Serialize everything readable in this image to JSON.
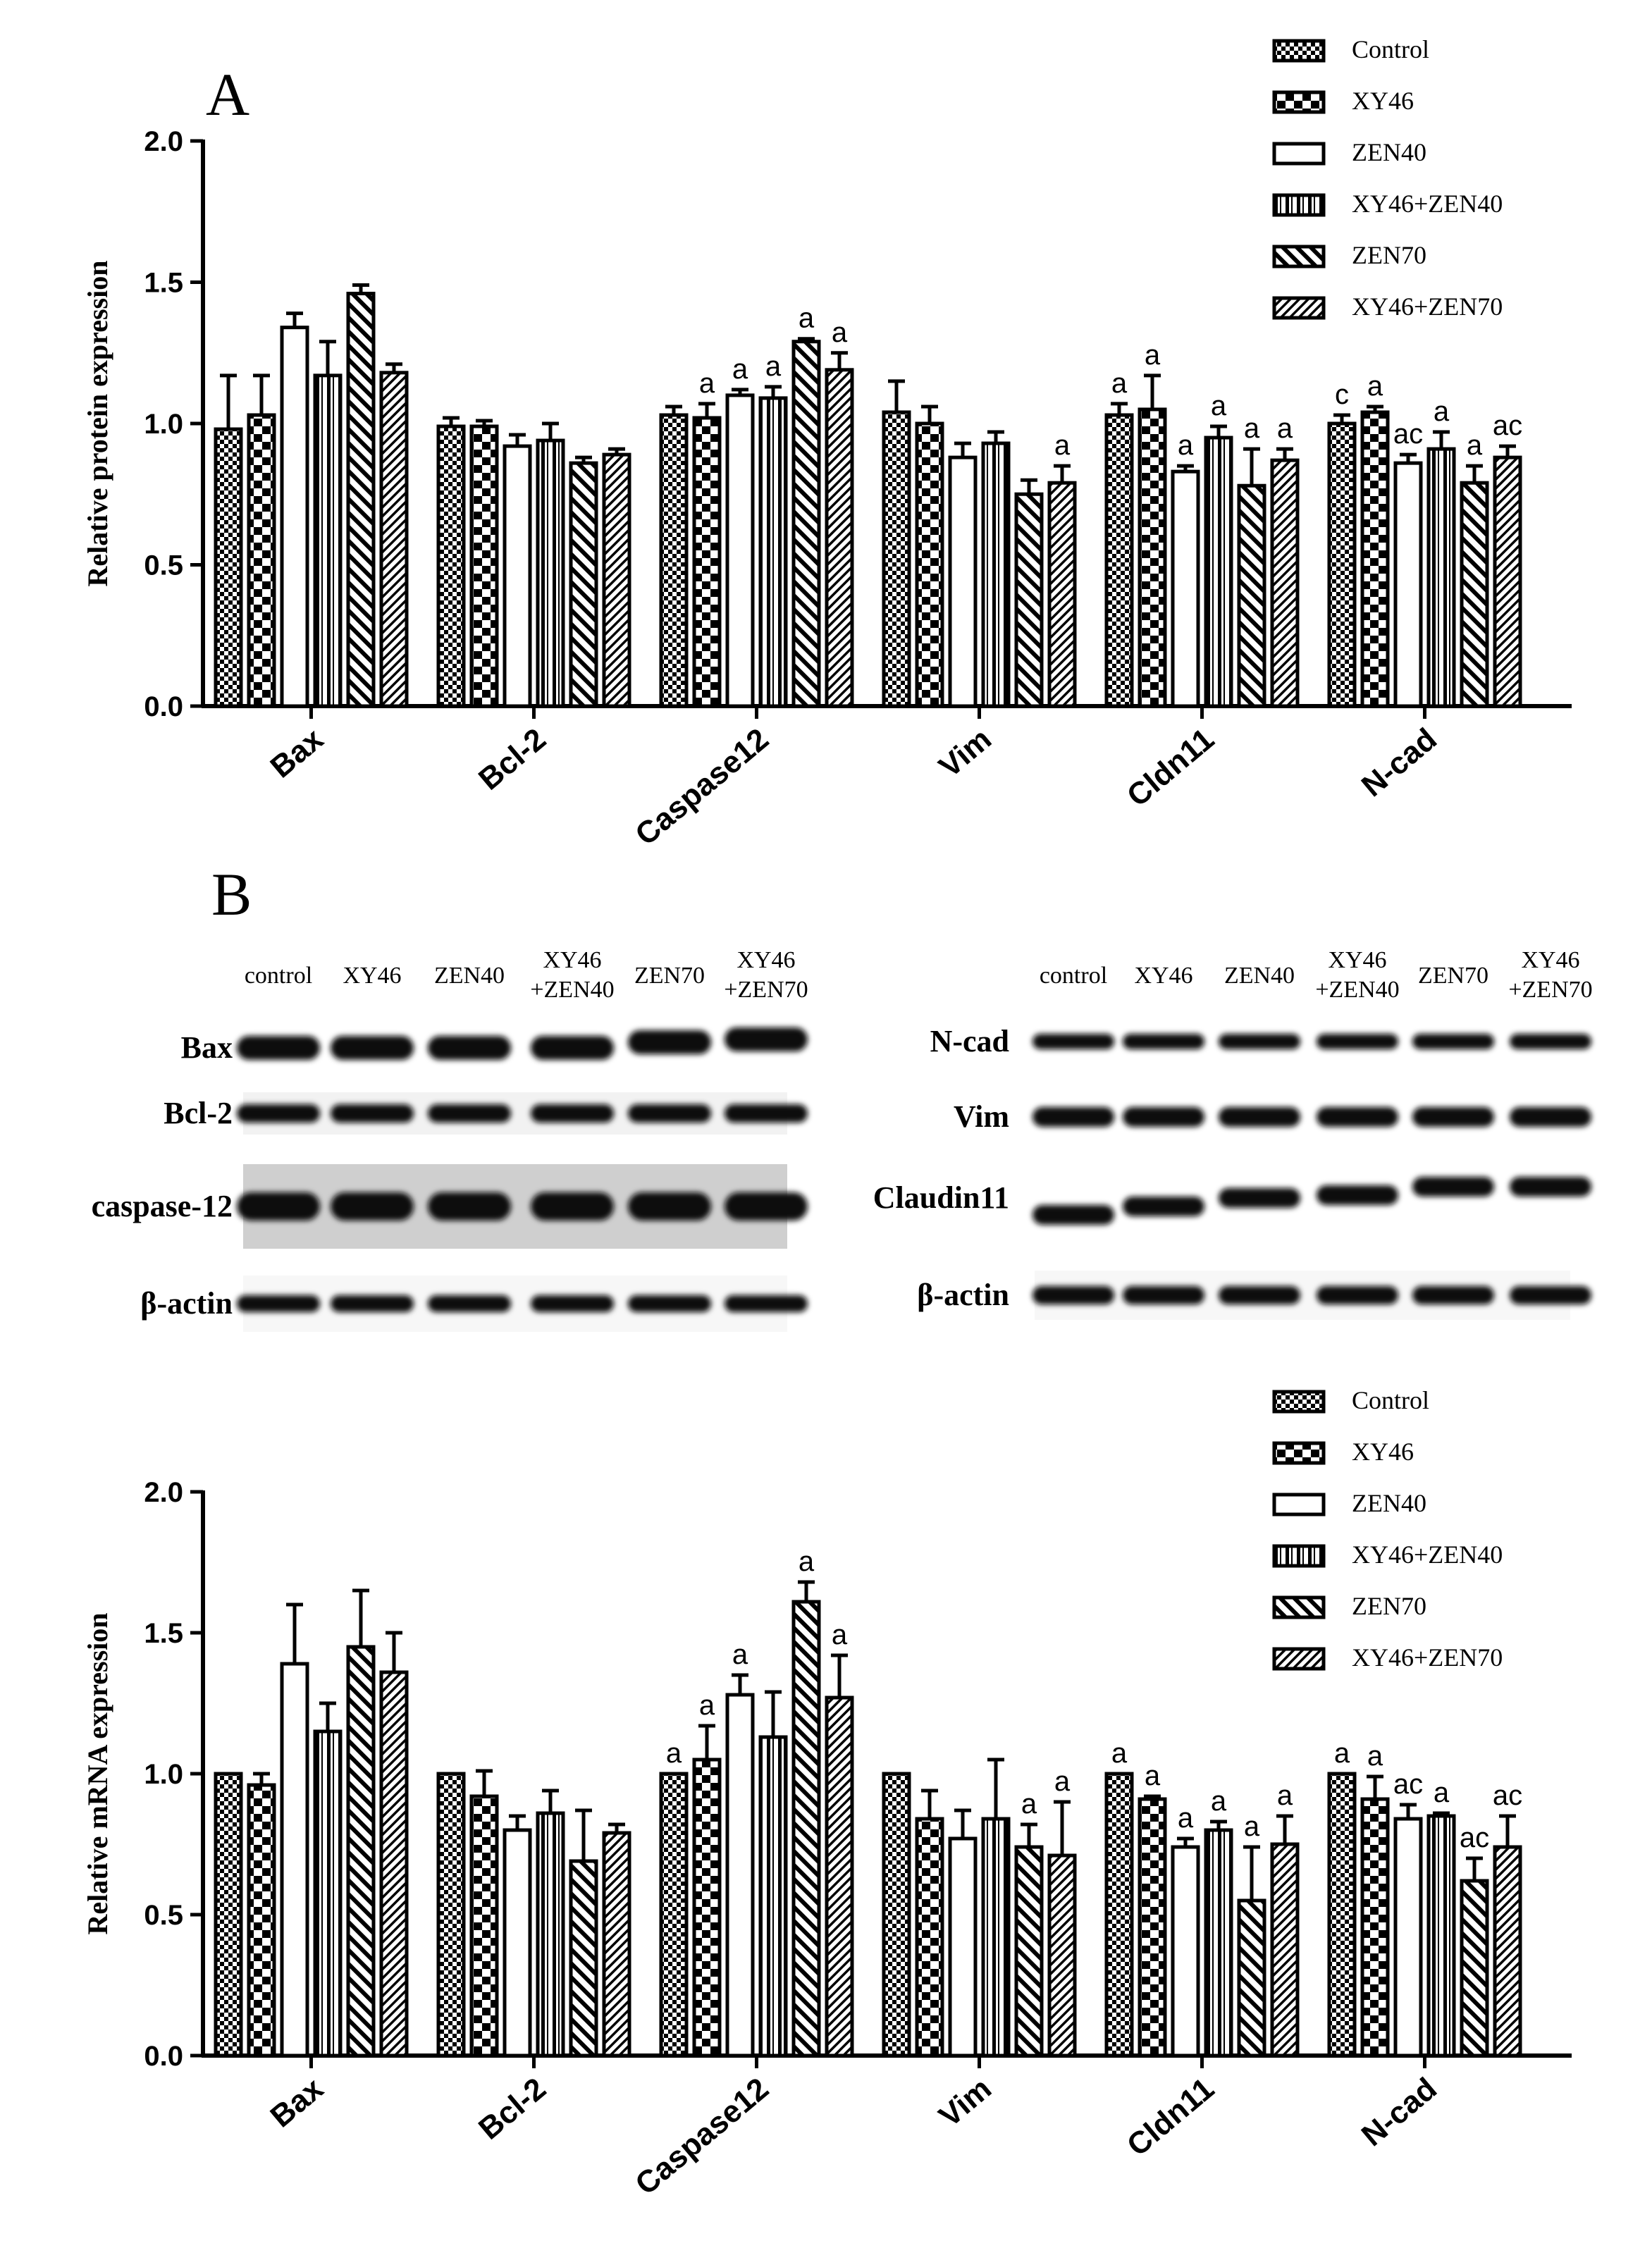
{
  "panels": {
    "a": "A",
    "b": "B"
  },
  "legend": [
    "Control",
    "XY46",
    "ZEN40",
    "XY46+ZEN40",
    "ZEN70",
    "XY46+ZEN70"
  ],
  "blot_left": {
    "lanes": [
      "control",
      "XY46",
      "ZEN40",
      "XY46\n+ZEN40",
      "ZEN70",
      "XY46\n+ZEN70"
    ],
    "rows": [
      "Bax",
      "Bcl-2",
      "caspase-12",
      "β-actin"
    ]
  },
  "blot_right": {
    "lanes": [
      "control",
      "XY46",
      "ZEN40",
      "XY46\n+ZEN40",
      "ZEN70",
      "XY46\n+ZEN70"
    ],
    "rows": [
      "N-cad",
      "Vim",
      "Claudin11",
      "β-actin"
    ]
  },
  "chart_data": [
    {
      "type": "bar",
      "ylabel": "Relative protein expression",
      "ylim": [
        0,
        2.0
      ],
      "yticks": [
        "0.0",
        "0.5",
        "1.0",
        "1.5",
        "2.0"
      ],
      "categories": [
        "Bax",
        "Bcl-2",
        "Caspase12",
        "Vim",
        "Cldn11",
        "N-cad"
      ],
      "series": [
        {
          "name": "Control",
          "values": [
            0.98,
            0.99,
            1.03,
            1.04,
            1.03,
            1.0
          ],
          "errors": [
            0.19,
            0.03,
            0.03,
            0.11,
            0.04,
            0.03
          ]
        },
        {
          "name": "XY46",
          "values": [
            1.03,
            0.99,
            1.02,
            1.0,
            1.05,
            1.04
          ],
          "errors": [
            0.14,
            0.02,
            0.05,
            0.06,
            0.12,
            0.02
          ]
        },
        {
          "name": "ZEN40",
          "values": [
            1.34,
            0.92,
            1.1,
            0.88,
            0.83,
            0.86
          ],
          "errors": [
            0.05,
            0.04,
            0.02,
            0.05,
            0.02,
            0.03
          ]
        },
        {
          "name": "XY46+ZEN40",
          "values": [
            1.17,
            0.94,
            1.09,
            0.93,
            0.95,
            0.91
          ],
          "errors": [
            0.12,
            0.06,
            0.04,
            0.04,
            0.04,
            0.06
          ]
        },
        {
          "name": "ZEN70",
          "values": [
            1.46,
            0.86,
            1.29,
            0.75,
            0.78,
            0.79
          ],
          "errors": [
            0.03,
            0.02,
            0.01,
            0.05,
            0.13,
            0.06
          ]
        },
        {
          "name": "XY46+ZEN70",
          "values": [
            1.18,
            0.89,
            1.19,
            0.79,
            0.87,
            0.88
          ],
          "errors": [
            0.03,
            0.02,
            0.06,
            0.06,
            0.04,
            0.04
          ]
        }
      ],
      "annotations": [
        [
          "",
          "",
          "",
          "",
          "a",
          "c"
        ],
        [
          "",
          "",
          "a",
          "",
          "a",
          "a"
        ],
        [
          "",
          "",
          "a",
          "",
          "a",
          "ac"
        ],
        [
          "",
          "",
          "a",
          "",
          "a",
          "a"
        ],
        [
          "",
          "",
          "a",
          "",
          "a",
          "a"
        ],
        [
          "",
          "",
          "a",
          "a",
          "a",
          "ac"
        ]
      ]
    },
    {
      "type": "bar",
      "ylabel": "Relative mRNA expression",
      "ylim": [
        0,
        2.0
      ],
      "yticks": [
        "0.0",
        "0.5",
        "1.0",
        "1.5",
        "2.0"
      ],
      "categories": [
        "Bax",
        "Bcl-2",
        "Caspase12",
        "Vim",
        "Cldn11",
        "N-cad"
      ],
      "series": [
        {
          "name": "Control",
          "values": [
            1.0,
            1.0,
            1.0,
            1.0,
            1.0,
            1.0
          ],
          "errors": [
            0,
            0,
            0,
            0,
            0,
            0
          ]
        },
        {
          "name": "XY46",
          "values": [
            0.96,
            0.92,
            1.05,
            0.84,
            0.91,
            0.91
          ],
          "errors": [
            0.04,
            0.09,
            0.12,
            0.1,
            0.01,
            0.08
          ]
        },
        {
          "name": "ZEN40",
          "values": [
            1.39,
            0.8,
            1.28,
            0.77,
            0.74,
            0.84
          ],
          "errors": [
            0.21,
            0.05,
            0.07,
            0.1,
            0.03,
            0.05
          ]
        },
        {
          "name": "XY46+ZEN40",
          "values": [
            1.15,
            0.86,
            1.13,
            0.84,
            0.8,
            0.85
          ],
          "errors": [
            0.1,
            0.08,
            0.16,
            0.21,
            0.03,
            0.01
          ]
        },
        {
          "name": "ZEN70",
          "values": [
            1.45,
            0.69,
            1.61,
            0.74,
            0.55,
            0.62
          ],
          "errors": [
            0.2,
            0.18,
            0.07,
            0.08,
            0.19,
            0.08
          ]
        },
        {
          "name": "XY46+ZEN70",
          "values": [
            1.36,
            0.79,
            1.27,
            0.71,
            0.75,
            0.74
          ],
          "errors": [
            0.14,
            0.03,
            0.15,
            0.19,
            0.1,
            0.11
          ]
        }
      ],
      "annotations": [
        [
          "",
          "",
          "a",
          "",
          "a",
          "a"
        ],
        [
          "",
          "",
          "a",
          "",
          "a",
          "a"
        ],
        [
          "",
          "",
          "a",
          "",
          "a",
          "ac"
        ],
        [
          "",
          "",
          "",
          "",
          "a",
          "a"
        ],
        [
          "",
          "",
          "a",
          "a",
          "a",
          "ac"
        ],
        [
          "",
          "",
          "a",
          "a",
          "a",
          "ac"
        ]
      ]
    }
  ]
}
